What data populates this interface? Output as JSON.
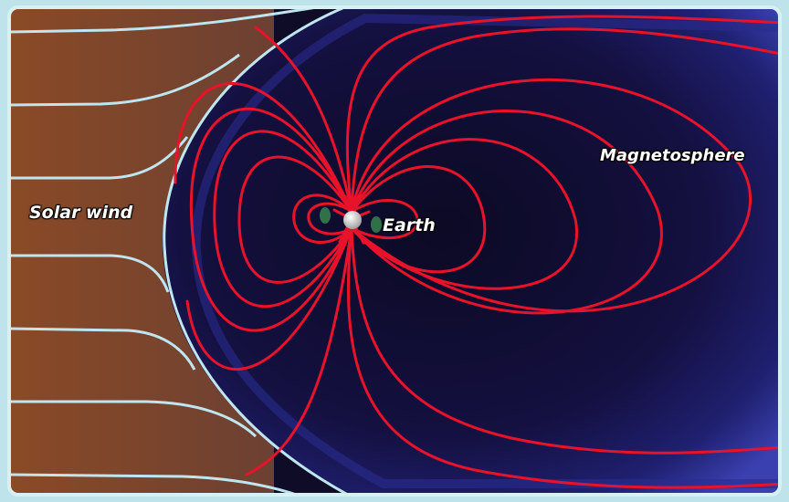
{
  "labels": {
    "solar_wind": "Solar wind",
    "earth": "Earth",
    "magnetosphere": "Magnetosphere"
  },
  "colors": {
    "frame": "#bfe3ea",
    "solar_wind_band": "#9a5530",
    "space": "#120f30",
    "magnetosphere_edge": "#3a40b0",
    "bow_shock": "#bfe6f0",
    "field_lines": "#e8122a",
    "wind_streams": "#bfe6f0",
    "earth": "#f2f2f2"
  }
}
